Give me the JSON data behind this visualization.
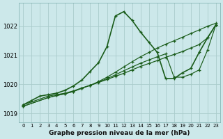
{
  "title": "Graphe pression niveau de la mer (hPa)",
  "xlim": [
    -0.5,
    23.5
  ],
  "ylim": [
    1018.7,
    1022.8
  ],
  "yticks": [
    1019,
    1020,
    1021,
    1022
  ],
  "bg_color": "#cce8ea",
  "grid_color": "#aacccc",
  "line_color": "#1a5c1a",
  "series": [
    {
      "x": [
        0,
        1,
        2,
        3,
        4,
        5,
        6,
        7,
        8,
        9,
        10,
        11,
        12,
        13,
        14,
        15,
        16,
        17,
        18,
        19,
        20,
        21,
        22,
        23
      ],
      "y": [
        1019.3,
        1019.45,
        1019.6,
        1019.65,
        1019.7,
        1019.8,
        1019.95,
        1020.15,
        1020.45,
        1020.75,
        1021.3,
        1022.35,
        1022.5,
        1022.2,
        1021.8,
        1021.45,
        1021.1,
        1020.2,
        1020.2,
        1020.4,
        1020.55,
        1021.1,
        1021.6,
        1022.05
      ],
      "marker": "+",
      "lw": 1.2,
      "ls": "-",
      "ms": 3.0
    },
    {
      "x": [
        0,
        3,
        4,
        5,
        6,
        7,
        8,
        9,
        10,
        11,
        12,
        13,
        14,
        15,
        16,
        17,
        18,
        19,
        20,
        21,
        22,
        23
      ],
      "y": [
        1019.3,
        1019.6,
        1019.65,
        1019.7,
        1019.78,
        1019.88,
        1019.97,
        1020.07,
        1020.17,
        1020.28,
        1020.38,
        1020.5,
        1020.62,
        1020.72,
        1020.82,
        1020.93,
        1021.03,
        1021.13,
        1021.25,
        1021.37,
        1021.6,
        1022.05
      ],
      "marker": "+",
      "lw": 0.9,
      "ls": "-",
      "ms": 2.5
    },
    {
      "x": [
        0,
        3,
        4,
        5,
        6,
        7,
        8,
        9,
        10,
        11,
        12,
        13,
        14,
        15,
        16,
        17,
        18,
        19,
        20,
        21,
        22,
        23
      ],
      "y": [
        1019.25,
        1019.55,
        1019.62,
        1019.68,
        1019.76,
        1019.87,
        1019.97,
        1020.08,
        1020.2,
        1020.33,
        1020.47,
        1020.6,
        1020.73,
        1020.84,
        1020.95,
        1021.05,
        1020.25,
        1020.25,
        1020.35,
        1020.5,
        1021.18,
        1022.05
      ],
      "marker": "+",
      "lw": 0.85,
      "ls": "-",
      "ms": 2.5
    },
    {
      "x": [
        0,
        3,
        4,
        5,
        6,
        7,
        8,
        9,
        10,
        11,
        12,
        13,
        14,
        15,
        16,
        17,
        18,
        19,
        20,
        21,
        22,
        23
      ],
      "y": [
        1019.25,
        1019.55,
        1019.62,
        1019.68,
        1019.76,
        1019.87,
        1019.97,
        1020.1,
        1020.25,
        1020.42,
        1020.6,
        1020.78,
        1020.95,
        1021.1,
        1021.25,
        1021.38,
        1021.5,
        1021.62,
        1021.75,
        1021.87,
        1022.0,
        1022.1
      ],
      "marker": "+",
      "lw": 0.85,
      "ls": "-",
      "ms": 2.5
    }
  ]
}
